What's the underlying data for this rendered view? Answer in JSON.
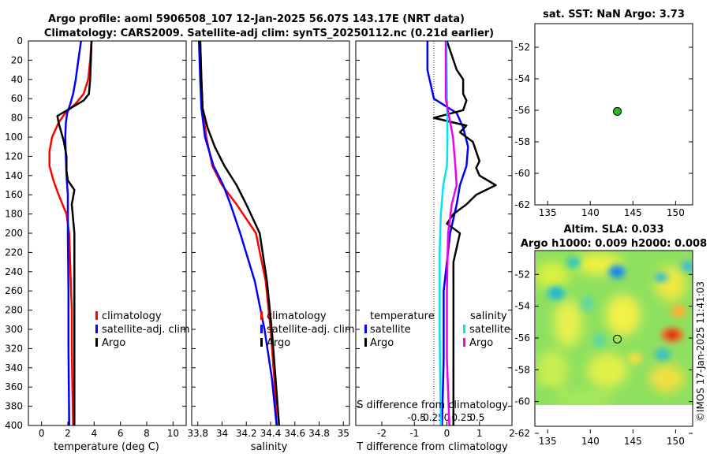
{
  "header": {
    "title_line1": "Argo profile: aoml 5906508_107 12-Jan-2025 56.07S 143.17E (NRT data)",
    "title_line2": "Climatology: CARS2009. Satellite-adj clim: synTS_20250112.nc (0.21d earlier)"
  },
  "depth_ticks": [
    "0",
    "20",
    "40",
    "60",
    "80",
    "100",
    "120",
    "140",
    "160",
    "180",
    "200",
    "220",
    "240",
    "260",
    "280",
    "300",
    "320",
    "340",
    "360",
    "380",
    "400"
  ],
  "colors": {
    "climatology": "#ff0000",
    "satellite": "#0000ff",
    "argo": "#000000",
    "sat_salinity": "#00e5ee",
    "argo_salinity": "#ee00ee"
  },
  "chart_data": [
    {
      "type": "line",
      "name": "temperature",
      "xlabel": "temperature (deg C)",
      "xlim": [
        -1,
        11
      ],
      "ylim": [
        400,
        0
      ],
      "x_ticks": [
        "0",
        "2",
        "4",
        "6",
        "8",
        "10"
      ],
      "legend": [
        "climatology",
        "satellite-adj. clim",
        "Argo"
      ],
      "series": [
        {
          "name": "climatology",
          "depth": [
            0,
            20,
            40,
            55,
            65,
            75,
            85,
            100,
            115,
            130,
            145,
            160,
            180,
            200,
            240,
            280,
            320,
            360,
            400
          ],
          "values": [
            3.8,
            3.7,
            3.55,
            3.2,
            2.6,
            1.8,
            1.3,
            0.8,
            0.6,
            0.6,
            0.9,
            1.3,
            1.9,
            2.1,
            2.2,
            2.3,
            2.3,
            2.35,
            2.4
          ]
        },
        {
          "name": "satellite-adj. clim",
          "depth": [
            0,
            20,
            40,
            55,
            65,
            75,
            85,
            100,
            120,
            140,
            160,
            180,
            200,
            260,
            320,
            400
          ],
          "values": [
            3.0,
            2.8,
            2.6,
            2.4,
            2.2,
            1.95,
            1.85,
            1.8,
            1.85,
            1.9,
            2.0,
            2.0,
            2.0,
            2.05,
            2.05,
            2.1
          ]
        },
        {
          "name": "Argo",
          "depth": [
            0,
            20,
            40,
            55,
            62,
            70,
            78,
            85,
            95,
            105,
            120,
            135,
            145,
            155,
            170,
            200,
            240,
            300,
            350,
            400
          ],
          "values": [
            3.8,
            3.75,
            3.7,
            3.6,
            3.2,
            2.2,
            1.2,
            1.3,
            1.5,
            1.7,
            1.9,
            1.9,
            2.0,
            2.5,
            2.3,
            2.5,
            2.5,
            2.5,
            2.5,
            2.5
          ]
        }
      ]
    },
    {
      "type": "line",
      "name": "salinity",
      "xlabel": "salinity",
      "xlim": [
        33.75,
        35.05
      ],
      "ylim": [
        400,
        0
      ],
      "x_ticks": [
        "33.8",
        "34",
        "34.2",
        "34.4",
        "34.6",
        "34.8",
        "35"
      ],
      "legend": [
        "climatology",
        "satellite-adj. clim",
        "Argo"
      ],
      "series": [
        {
          "name": "climatology",
          "depth": [
            0,
            40,
            70,
            100,
            130,
            150,
            170,
            200,
            250,
            300,
            350,
            400
          ],
          "values": [
            33.82,
            33.83,
            33.84,
            33.87,
            33.92,
            34.0,
            34.12,
            34.28,
            34.36,
            34.4,
            34.43,
            34.45
          ]
        },
        {
          "name": "satellite-adj. clim",
          "depth": [
            0,
            40,
            70,
            100,
            130,
            150,
            170,
            200,
            250,
            300,
            350,
            400
          ],
          "values": [
            33.81,
            33.82,
            33.83,
            33.86,
            33.93,
            34.01,
            34.07,
            34.15,
            34.27,
            34.35,
            34.41,
            34.45
          ]
        },
        {
          "name": "Argo",
          "depth": [
            0,
            40,
            70,
            90,
            110,
            130,
            150,
            170,
            200,
            250,
            300,
            350,
            400
          ],
          "values": [
            33.82,
            33.83,
            33.84,
            33.88,
            33.94,
            34.02,
            34.12,
            34.2,
            34.31,
            34.37,
            34.41,
            34.44,
            34.47
          ]
        }
      ]
    },
    {
      "type": "line",
      "name": "differences",
      "xlabel": "T difference from climatology",
      "top_label": "S difference from climatology",
      "xlim": [
        -2.8,
        2.0
      ],
      "ylim": [
        400,
        0
      ],
      "x_ticks": [
        "-2",
        "-1",
        "0",
        "1",
        "2"
      ],
      "top_ticks": [
        "-0.5",
        "-0.25",
        "0",
        "0.25",
        "0.5"
      ],
      "legend_left_title": "temperature",
      "legend_right_title": "salinity",
      "legend_left": [
        "satellite",
        "Argo"
      ],
      "legend_right": [
        "satellite",
        "Argo"
      ],
      "series": [
        {
          "name": "T satellite",
          "depth": [
            0,
            30,
            45,
            60,
            75,
            90,
            110,
            130,
            150,
            170,
            200,
            260,
            330,
            400
          ],
          "values": [
            -0.6,
            -0.6,
            -0.5,
            -0.4,
            0.3,
            0.5,
            0.65,
            0.6,
            0.4,
            0.3,
            0.1,
            -0.1,
            -0.1,
            -0.15
          ]
        },
        {
          "name": "T Argo",
          "depth": [
            0,
            30,
            40,
            55,
            62,
            72,
            80,
            88,
            95,
            105,
            115,
            125,
            132,
            140,
            150,
            160,
            170,
            180,
            190,
            200,
            215,
            230,
            260,
            300,
            350,
            400
          ],
          "values": [
            0,
            0.3,
            0.5,
            0.5,
            0.6,
            0.5,
            -0.4,
            0.6,
            0.4,
            0.8,
            0.9,
            1.0,
            0.9,
            1.0,
            1.5,
            0.9,
            0.6,
            0.2,
            0.0,
            0.4,
            0.3,
            0.2,
            0.2,
            0.2,
            0.2,
            0.2
          ]
        },
        {
          "name": "S satellite",
          "depth": [
            0,
            100,
            130,
            150,
            180,
            220,
            300,
            400
          ],
          "values": [
            -0.005,
            0.005,
            0.0,
            -0.03,
            -0.05,
            -0.06,
            -0.06,
            -0.05
          ]
        },
        {
          "name": "S Argo",
          "depth": [
            0,
            60,
            100,
            130,
            150,
            170,
            200,
            260,
            330,
            400
          ],
          "values": [
            -0.01,
            -0.01,
            0.05,
            0.07,
            0.08,
            0.04,
            0.01,
            0.0,
            0.0,
            0.02
          ]
        }
      ]
    },
    {
      "type": "scatter",
      "name": "sst_map",
      "title": "sat. SST: NaN Argo: 3.73",
      "xlim": [
        133.5,
        152
      ],
      "ylim": [
        -62,
        -50.5
      ],
      "x_ticks": [
        "135",
        "140",
        "145",
        "150"
      ],
      "y_ticks": [
        "-52",
        "-54",
        "-56",
        "-58",
        "-60",
        "-62"
      ],
      "point": {
        "lon": 143.17,
        "lat": -56.07
      }
    },
    {
      "type": "heatmap",
      "name": "sla_map",
      "title_line1": "Altim. SLA: 0.033",
      "title_line2": "Argo h1000: 0.009 h2000: 0.008",
      "xlim": [
        133.5,
        152
      ],
      "ylim": [
        -62,
        -50.5
      ],
      "x_ticks": [
        "135",
        "140",
        "145",
        "150"
      ],
      "y_ticks": [
        "-52",
        "-54",
        "-56",
        "-58",
        "-60",
        "-62"
      ],
      "data_lat_range": [
        -60,
        -50.5
      ],
      "point": {
        "lon": 143.17,
        "lat": -56.07
      }
    }
  ],
  "copyright": "©IMOS 17-Jan-2025 11:41:03"
}
